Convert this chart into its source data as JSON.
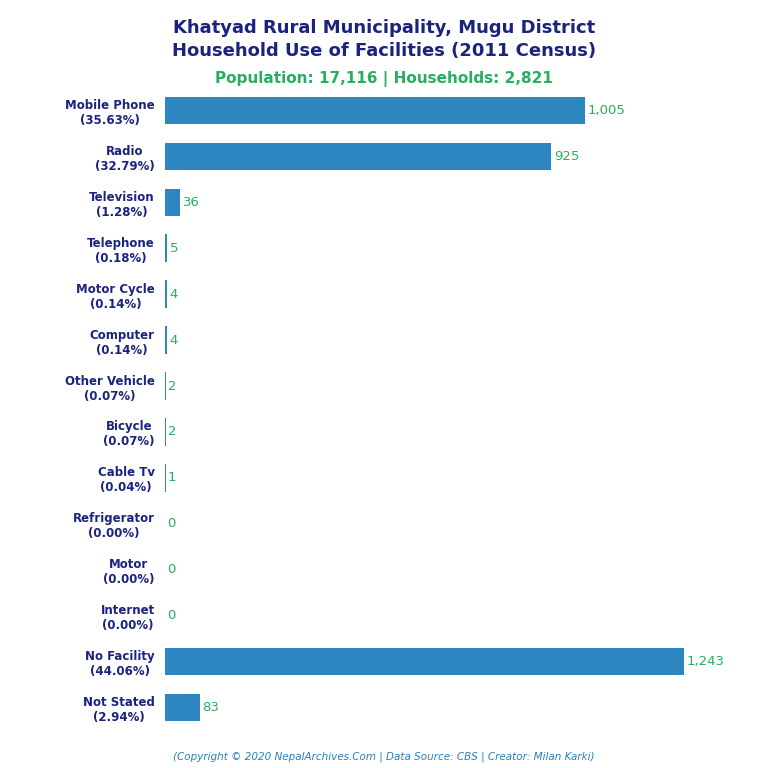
{
  "title_line1": "Khatyad Rural Municipality, Mugu District",
  "title_line2": "Household Use of Facilities (2011 Census)",
  "subtitle": "Population: 17,116 | Households: 2,821",
  "footer": "(Copyright © 2020 NepalArchives.Com | Data Source: CBS | Creator: Milan Karki)",
  "categories": [
    "Mobile Phone\n(35.63%)",
    "Radio\n(32.79%)",
    "Television\n(1.28%)",
    "Telephone\n(0.18%)",
    "Motor Cycle\n(0.14%)",
    "Computer\n(0.14%)",
    "Other Vehicle\n(0.07%)",
    "Bicycle\n(0.07%)",
    "Cable Tv\n(0.04%)",
    "Refrigerator\n(0.00%)",
    "Motor\n(0.00%)",
    "Internet\n(0.00%)",
    "No Facility\n(44.06%)",
    "Not Stated\n(2.94%)"
  ],
  "values": [
    1005,
    925,
    36,
    5,
    4,
    4,
    2,
    2,
    1,
    0,
    0,
    0,
    1243,
    83
  ],
  "bar_color": "#2e86c1",
  "label_color": "#27ae60",
  "title_color": "#1a237e",
  "subtitle_color": "#27ae60",
  "footer_color": "#2980b9",
  "background_color": "#ffffff",
  "xlim": [
    0,
    1380
  ]
}
